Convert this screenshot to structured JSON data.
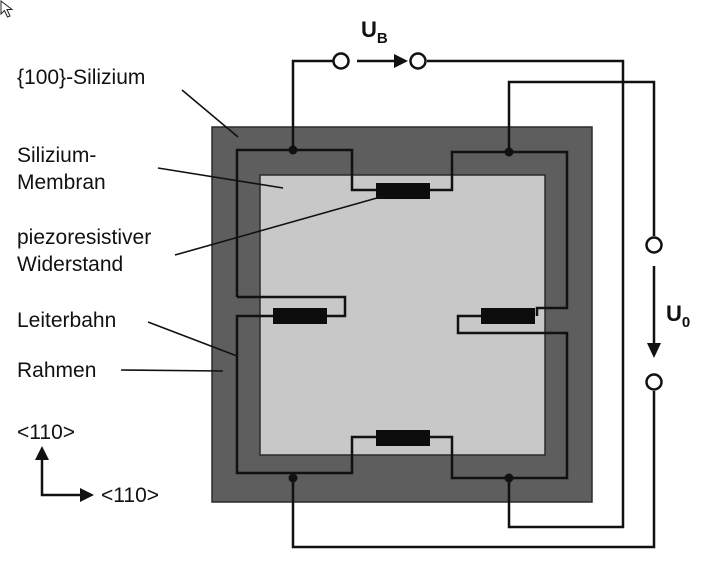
{
  "labels": {
    "silicon": "{100}-Silizium",
    "membrane_line1": "Silizium-",
    "membrane_line2": "Membran",
    "resistor_line1": "piezoresistiver",
    "resistor_line2": "Widerstand",
    "trace": "Leiterbahn",
    "frame": "Rahmen"
  },
  "voltages": {
    "supply_main": "U",
    "supply_sub": "B",
    "output_main": "U",
    "output_sub": "0"
  },
  "axes": {
    "vertical": "<110>",
    "horizontal": "<110>"
  },
  "colors": {
    "frame": "#5e5e5e",
    "membrane": "#c8c8c8",
    "wire": "#111111",
    "resistor": "#0d0d0d",
    "background": "#ffffff"
  },
  "icons": {
    "cursor": "mouse-pointer-icon"
  }
}
